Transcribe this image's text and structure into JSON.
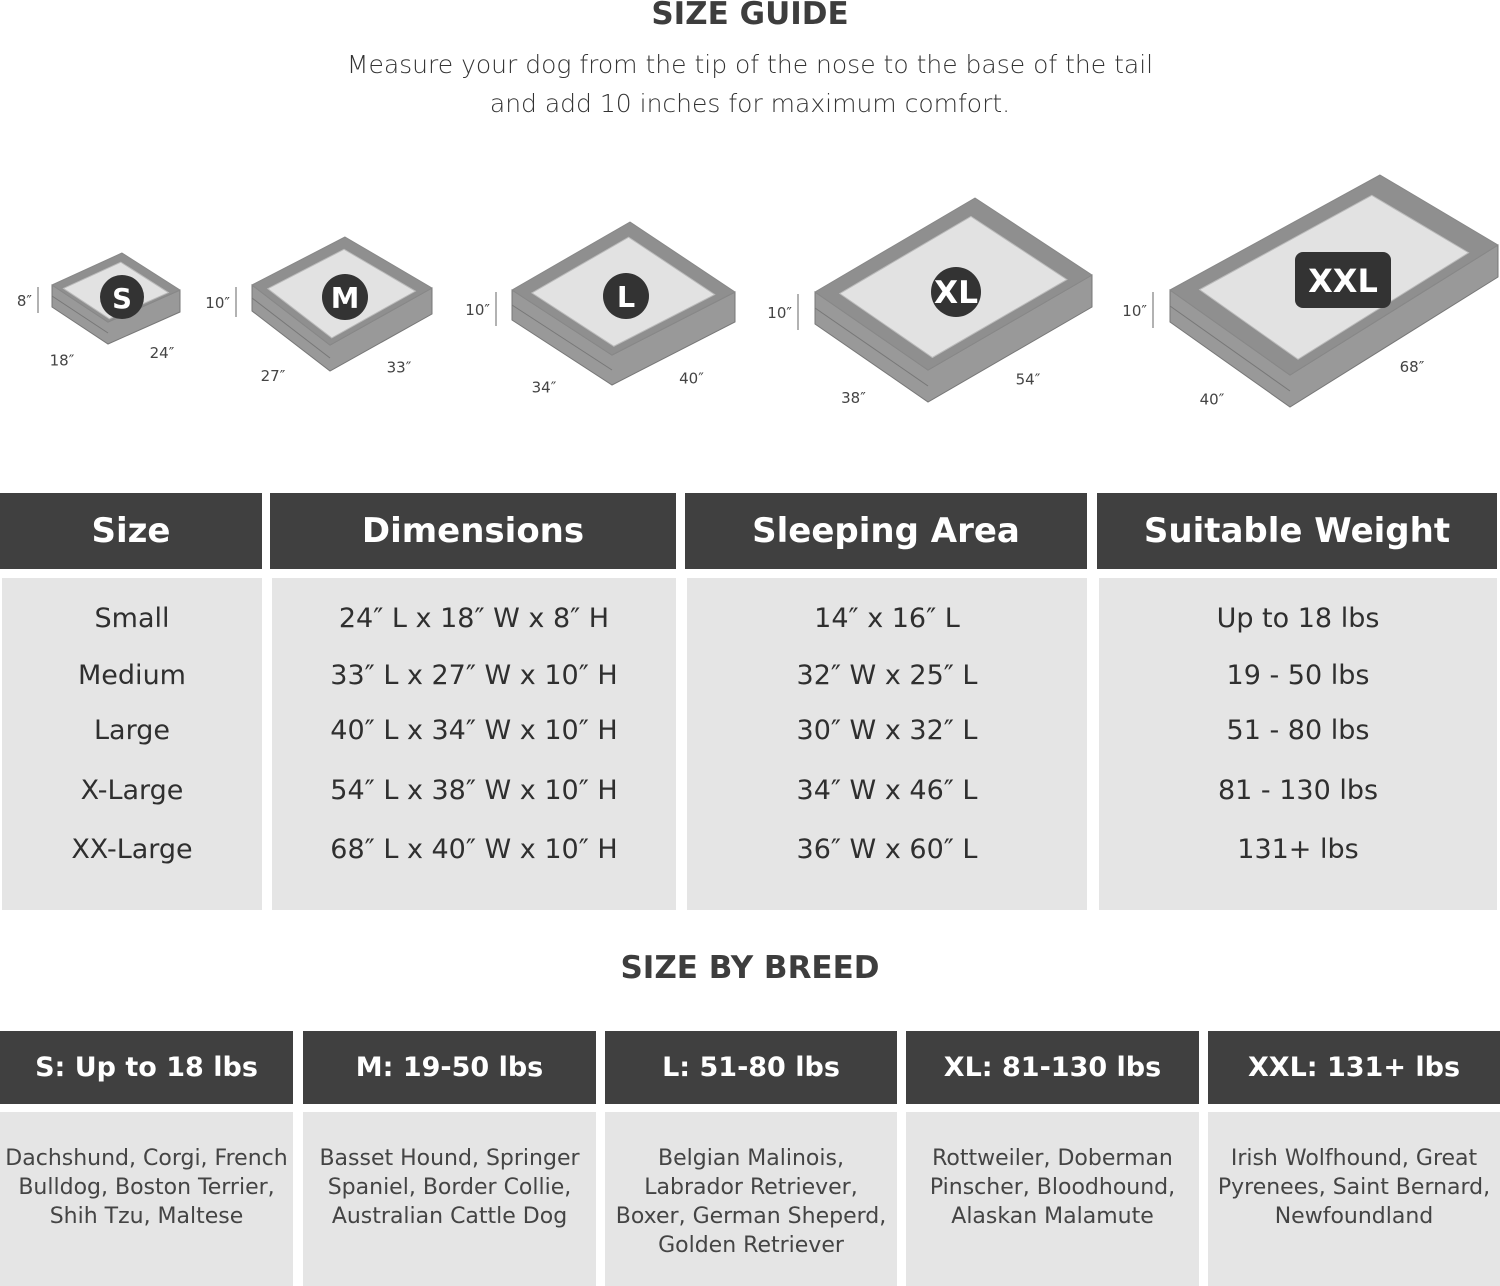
{
  "header": {
    "title": "SIZE GUIDE",
    "subtitle_lines": [
      "Measure your dog from the tip of the nose to the base of the tail",
      "and add 10 inches for maximum comfort."
    ]
  },
  "beds": [
    {
      "badge": "S",
      "height": "8″",
      "width": "18″",
      "length": "24″"
    },
    {
      "badge": "M",
      "height": "10″",
      "width": "27″",
      "length": "33″"
    },
    {
      "badge": "L",
      "height": "10″",
      "width": "34″",
      "length": "40″"
    },
    {
      "badge": "XL",
      "height": "10″",
      "width": "38″",
      "length": "54″"
    },
    {
      "badge": "XXL",
      "height": "10″",
      "width": "40″",
      "length": "68″"
    }
  ],
  "size_table": {
    "headers": [
      "Size",
      "Dimensions",
      "Sleeping Area",
      "Suitable Weight"
    ],
    "columns": [
      [
        "Small",
        "Medium",
        "Large",
        "X-Large",
        "XX-Large"
      ],
      [
        "24″ L x 18″ W x 8″ H",
        "33″ L x 27″ W x 10″ H",
        "40″ L x 34″ W x 10″ H",
        "54″ L x 38″ W x 10″ H",
        "68″ L x 40″ W x 10″ H"
      ],
      [
        "14″ x 16″ L",
        "32″ W x 25″ L",
        "30″ W x 32″ L",
        "34″ W x 46″ L",
        "36″ W x 60″ L"
      ],
      [
        "Up to 18 lbs",
        "19 - 50 lbs",
        "51 - 80 lbs",
        "81 - 130 lbs",
        "131+ lbs"
      ]
    ]
  },
  "breed_section": {
    "title": "SIZE BY BREED",
    "columns": [
      {
        "header": "S: Up to 18 lbs",
        "breeds": "Dachshund, Corgi, French Bulldog, Boston Terrier, Shih Tzu, Maltese"
      },
      {
        "header": "M: 19-50 lbs",
        "breeds": "Basset Hound, Springer Spaniel, Border Collie, Australian Cattle Dog"
      },
      {
        "header": "L: 51-80 lbs",
        "breeds": "Belgian Malinois, Labrador Retriever, Boxer, German Sheperd, Golden Retriever"
      },
      {
        "header": "XL: 81-130 lbs",
        "breeds": "Rottweiler, Doberman Pinscher, Bloodhound, Alaskan Malamute"
      },
      {
        "header": "XXL: 131+ lbs",
        "breeds": "Irish Wolfhound, Great Pyrenees, Saint Bernard, Newfoundland"
      }
    ]
  },
  "colors": {
    "header_bg": "#404040",
    "cell_bg": "#e5e5e5",
    "bed_frame": "#8f8f8f",
    "bed_top": "#e2e2e2",
    "badge": "#333333"
  }
}
